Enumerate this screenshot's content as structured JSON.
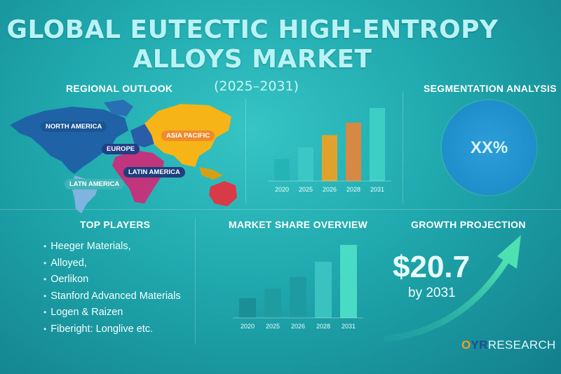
{
  "header": {
    "title_line1": "GLOBAL EUTECTIC HIGH-ENTROPY",
    "title_line2": "ALLOYS MARKET",
    "subtitle": "(2025–2031)"
  },
  "regional_outlook": {
    "heading": "REGIONAL OUTLOOK",
    "labels": {
      "north_america": "NORTH AMERICA",
      "europe": "EUROPE",
      "asia_pacific": "ASIA PACIFIC",
      "latin_america": "LATIN AMERICA",
      "latn_america": "LATN AMERICA"
    },
    "colors": {
      "north_america": "#1f63a6",
      "latin_america": "#7fb3e0",
      "europe": "#2a5da8",
      "africa": "#c0357c",
      "asia_pacific": "#f6b417",
      "oceania": "#d83a48"
    }
  },
  "chart_data": [
    {
      "type": "bar",
      "categories": [
        "2020",
        "2025",
        "2026",
        "2028",
        "2031"
      ],
      "values": [
        3,
        4.6,
        6.3,
        8,
        10
      ],
      "ylim": [
        0,
        10
      ],
      "colors": [
        "#25b3b5",
        "#3dc8c6",
        "#f0a020",
        "#e6843a",
        "#3fd0c8"
      ]
    },
    {
      "type": "bar",
      "categories": [
        "2020",
        "2025",
        "2026",
        "2028",
        "2031"
      ],
      "values": [
        2.7,
        4.0,
        5.6,
        7.7,
        10
      ],
      "ylim": [
        0,
        10
      ],
      "colors": [
        "#1c8d95",
        "#1f9ba0",
        "#1e9aa0",
        "#3cc4c2",
        "#4ee0c8"
      ]
    }
  ],
  "segmentation": {
    "heading": "SEGMENTATION ANALYSIS",
    "value": "XX%"
  },
  "top_players": {
    "heading": "TOP PLAYERS",
    "items": [
      "Heeger Materials,",
      "Alloyed,",
      "Oerlikon",
      "Stanford Advanced Materials",
      "Logen & Raizen",
      "Fiberight: Longlive etc."
    ]
  },
  "market_share": {
    "heading": "MARKET SHARE OVERVIEW"
  },
  "growth": {
    "heading": "GROWTH PROJECTION",
    "value": "$20.7",
    "year_text": "by 2031"
  },
  "brand": {
    "logo_o": "O",
    "logo_yr": "YR",
    "logo_research": "RESEARCH"
  }
}
